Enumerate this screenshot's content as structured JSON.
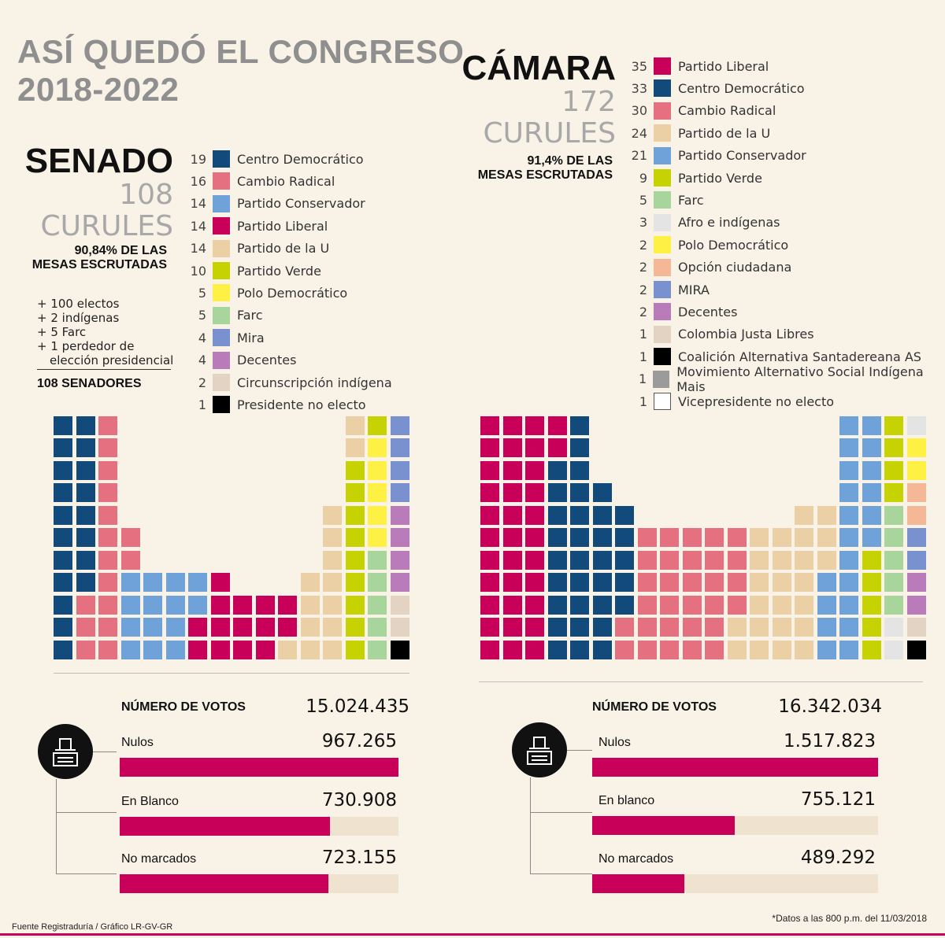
{
  "title": [
    "ASÍ QUEDÓ EL CONGRESO",
    "2018-2022"
  ],
  "colors": {
    "Partido Liberal": "#c8005a",
    "Centro Democrático": "#124a7c",
    "Cambio Radical": "#e5707f",
    "Partido de la U": "#ebcfa5",
    "Partido Conservador": "#6fa2d8",
    "Partido Verde": "#c6d201",
    "Farc": "#a7d59b",
    "Afro e indígenas": "#e4e4e4",
    "Polo Democrático": "#fff044",
    "Opción ciudadana": "#f5b896",
    "MIRA": "#7991cf",
    "Mira": "#7991cf",
    "Decentes": "#b97bb9",
    "Colombia Justa Libres": "#e2d3c3",
    "Circunscripción indígena": "#e2d3c3",
    "Coalición Alternativa Santadereana AS": "#000000",
    "Movimiento Alternativo Social Indígena Mais": "#9b9b9b",
    "Presidente no electo": "#000000",
    "Vicepresidente no electo": "#ffffff"
  },
  "senado": {
    "name": "SENADO",
    "seats_number": "108",
    "seats_word": "CURULES",
    "scrutiny": [
      "90,84% DE LAS",
      "MESAS ESCRUTADAS"
    ],
    "notes": [
      "+ 100 electos",
      "+ 2 indígenas",
      "+ 5 Farc",
      "+ 1 perdedor de",
      "elección presidencial"
    ],
    "total_label": "108 SENADORES",
    "votes": {
      "label": "NÚMERO DE VOTOS",
      "total": "15.024.435",
      "rows": [
        {
          "label": "Nulos",
          "value": "967.265",
          "amount": 967265
        },
        {
          "label": "En Blanco",
          "value": "730.908",
          "amount": 730908
        },
        {
          "label": "No marcados",
          "value": "723.155",
          "amount": 723155
        }
      ]
    }
  },
  "camara": {
    "name": "CÁMARA",
    "seats_number": "172",
    "seats_word": "CURULES",
    "scrutiny": [
      "91,4% DE LAS",
      "MESAS ESCRUTADAS"
    ],
    "votes": {
      "label": "NÚMERO DE VOTOS",
      "total": "16.342.034",
      "rows": [
        {
          "label": "Nulos",
          "value": "1.517.823",
          "amount": 1517823
        },
        {
          "label": "En blanco",
          "value": "755.121",
          "amount": 755121
        },
        {
          "label": "No marcados",
          "value": "489.292",
          "amount": 489292
        }
      ]
    }
  },
  "chart_data": [
    {
      "type": "parliament-waffle",
      "title": "SENADO 108 CURULES",
      "categories": [
        "Centro Democrático",
        "Cambio Radical",
        "Partido Conservador",
        "Partido Liberal",
        "Partido de la U",
        "Partido Verde",
        "Polo Democrático",
        "Farc",
        "Mira",
        "Decentes",
        "Circunscripción indígena",
        "Presidente no electo"
      ],
      "values": [
        19,
        16,
        14,
        14,
        14,
        10,
        5,
        5,
        4,
        4,
        2,
        1
      ]
    },
    {
      "type": "parliament-waffle",
      "title": "CÁMARA 172 CURULES",
      "categories": [
        "Partido Liberal",
        "Centro Democrático",
        "Cambio Radical",
        "Partido de la U",
        "Partido Conservador",
        "Partido Verde",
        "Farc",
        "Afro e indígenas",
        "Polo Democrático",
        "Opción ciudadana",
        "MIRA",
        "Decentes",
        "Colombia Justa Libres",
        "Coalición Alternativa Santadereana AS",
        "Movimiento Alternativo Social Indígena Mais",
        "Vicepresidente no electo"
      ],
      "values": [
        35,
        33,
        30,
        24,
        21,
        9,
        5,
        3,
        2,
        2,
        2,
        2,
        1,
        1,
        1,
        1
      ]
    }
  ],
  "footer": {
    "source": "Fuente Registraduría / Gráfico LR-GV-GR",
    "note": "*Datos a las 800 p.m. del 11/03/2018"
  }
}
